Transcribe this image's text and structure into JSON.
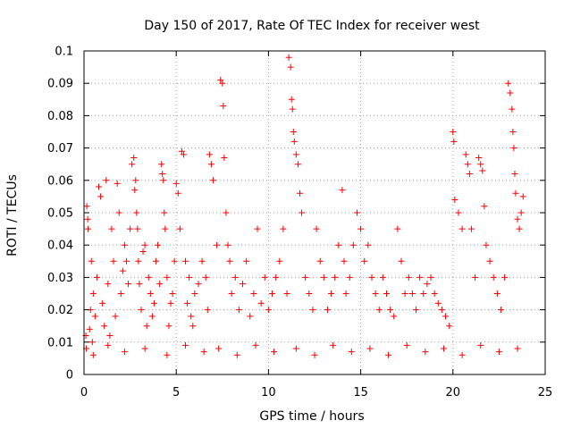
{
  "chart_data": {
    "type": "scatter",
    "title": "Day 150 of 2017, Rate Of TEC Index for receiver west",
    "xlabel": "GPS time / hours",
    "ylabel": "ROTI / TECUs",
    "xlim": [
      0,
      25
    ],
    "ylim": [
      0,
      0.1
    ],
    "xticks": [
      0,
      5,
      10,
      15,
      20,
      25
    ],
    "xtick_labels": [
      "0",
      "5",
      "10",
      "15",
      "20",
      "25"
    ],
    "yticks": [
      0,
      0.01,
      0.02,
      0.03,
      0.04,
      0.05,
      0.06,
      0.07,
      0.08,
      0.09,
      0.1
    ],
    "ytick_labels": [
      "0",
      "0.01",
      "0.02",
      "0.03",
      "0.04",
      "0.05",
      "0.06",
      "0.07",
      "0.08",
      "0.09",
      "0.1"
    ],
    "grid": true,
    "marker": "+",
    "color": "#ff0000",
    "series": [
      {
        "name": "ROTI",
        "x": [
          0.1,
          0.15,
          0.2,
          0.22,
          0.3,
          0.35,
          0.4,
          0.45,
          0.5,
          0.6,
          0.7,
          0.8,
          0.9,
          1.0,
          1.1,
          1.2,
          1.3,
          1.4,
          1.5,
          1.6,
          1.7,
          1.8,
          1.9,
          2.0,
          2.1,
          2.2,
          2.3,
          2.4,
          2.5,
          2.6,
          2.7,
          2.75,
          2.8,
          2.85,
          2.9,
          2.95,
          3.0,
          3.1,
          3.2,
          3.3,
          3.4,
          3.5,
          3.6,
          3.7,
          3.8,
          3.9,
          4.0,
          4.1,
          4.2,
          4.25,
          4.3,
          4.35,
          4.4,
          4.5,
          4.6,
          4.7,
          4.8,
          4.9,
          5.0,
          5.1,
          5.2,
          5.3,
          5.4,
          5.5,
          5.6,
          5.7,
          5.8,
          5.9,
          6.0,
          6.2,
          6.4,
          6.6,
          6.7,
          6.8,
          6.9,
          7.0,
          7.2,
          7.4,
          7.5,
          7.55,
          7.6,
          7.7,
          7.8,
          7.9,
          8.0,
          8.2,
          8.4,
          8.6,
          8.8,
          9.0,
          9.2,
          9.4,
          9.6,
          9.8,
          10.0,
          10.2,
          10.4,
          10.6,
          10.8,
          11.0,
          11.1,
          11.2,
          11.25,
          11.3,
          11.35,
          11.4,
          11.5,
          11.6,
          11.7,
          11.8,
          12.0,
          12.2,
          12.4,
          12.6,
          12.8,
          13.0,
          13.2,
          13.4,
          13.6,
          13.8,
          14.0,
          14.1,
          14.2,
          14.4,
          14.6,
          14.8,
          15.0,
          15.2,
          15.4,
          15.6,
          15.8,
          16.0,
          16.2,
          16.4,
          16.6,
          16.8,
          17.0,
          17.2,
          17.4,
          17.6,
          17.8,
          18.0,
          18.2,
          18.4,
          18.6,
          18.8,
          19.0,
          19.2,
          19.4,
          19.6,
          19.8,
          20.0,
          20.05,
          20.1,
          20.3,
          20.5,
          20.7,
          20.8,
          20.9,
          21.0,
          21.2,
          21.4,
          21.5,
          21.6,
          21.7,
          21.8,
          22.0,
          22.2,
          22.4,
          22.6,
          22.8,
          23.0,
          23.1,
          23.2,
          23.25,
          23.3,
          23.35,
          23.4,
          23.5,
          23.6,
          23.7,
          23.8,
          0.12,
          0.5,
          1.3,
          2.2,
          3.3,
          4.5,
          5.5,
          6.5,
          7.3,
          8.3,
          9.3,
          10.3,
          11.5,
          12.5,
          13.5,
          14.5,
          15.5,
          16.5,
          17.5,
          18.5,
          19.5,
          20.5,
          21.5,
          22.5,
          23.5
        ],
        "y": [
          0.012,
          0.052,
          0.048,
          0.045,
          0.014,
          0.02,
          0.035,
          0.01,
          0.025,
          0.018,
          0.03,
          0.058,
          0.055,
          0.022,
          0.015,
          0.06,
          0.028,
          0.012,
          0.045,
          0.035,
          0.018,
          0.059,
          0.05,
          0.025,
          0.032,
          0.04,
          0.035,
          0.028,
          0.045,
          0.065,
          0.067,
          0.057,
          0.06,
          0.05,
          0.045,
          0.035,
          0.028,
          0.02,
          0.038,
          0.04,
          0.015,
          0.03,
          0.025,
          0.018,
          0.022,
          0.035,
          0.04,
          0.028,
          0.065,
          0.062,
          0.06,
          0.05,
          0.045,
          0.03,
          0.015,
          0.022,
          0.025,
          0.035,
          0.059,
          0.056,
          0.045,
          0.069,
          0.068,
          0.035,
          0.022,
          0.03,
          0.018,
          0.015,
          0.025,
          0.028,
          0.035,
          0.03,
          0.02,
          0.068,
          0.065,
          0.06,
          0.04,
          0.091,
          0.09,
          0.083,
          0.067,
          0.05,
          0.04,
          0.035,
          0.025,
          0.03,
          0.02,
          0.028,
          0.035,
          0.018,
          0.025,
          0.045,
          0.022,
          0.03,
          0.02,
          0.025,
          0.03,
          0.035,
          0.045,
          0.025,
          0.098,
          0.095,
          0.085,
          0.082,
          0.075,
          0.072,
          0.068,
          0.065,
          0.056,
          0.05,
          0.03,
          0.025,
          0.02,
          0.045,
          0.035,
          0.03,
          0.02,
          0.025,
          0.03,
          0.04,
          0.057,
          0.035,
          0.025,
          0.03,
          0.04,
          0.05,
          0.045,
          0.035,
          0.04,
          0.03,
          0.025,
          0.02,
          0.03,
          0.025,
          0.02,
          0.018,
          0.045,
          0.035,
          0.025,
          0.03,
          0.025,
          0.02,
          0.03,
          0.025,
          0.028,
          0.03,
          0.025,
          0.022,
          0.02,
          0.018,
          0.015,
          0.075,
          0.072,
          0.054,
          0.05,
          0.045,
          0.068,
          0.065,
          0.062,
          0.045,
          0.03,
          0.067,
          0.065,
          0.063,
          0.052,
          0.04,
          0.035,
          0.03,
          0.025,
          0.02,
          0.03,
          0.09,
          0.087,
          0.082,
          0.075,
          0.07,
          0.062,
          0.056,
          0.048,
          0.045,
          0.05,
          0.055,
          0.008,
          0.006,
          0.009,
          0.007,
          0.008,
          0.006,
          0.009,
          0.007,
          0.008,
          0.006,
          0.009,
          0.007,
          0.008,
          0.006,
          0.009,
          0.007,
          0.008,
          0.006,
          0.009,
          0.007,
          0.008,
          0.006,
          0.009,
          0.007,
          0.008
        ]
      }
    ]
  }
}
